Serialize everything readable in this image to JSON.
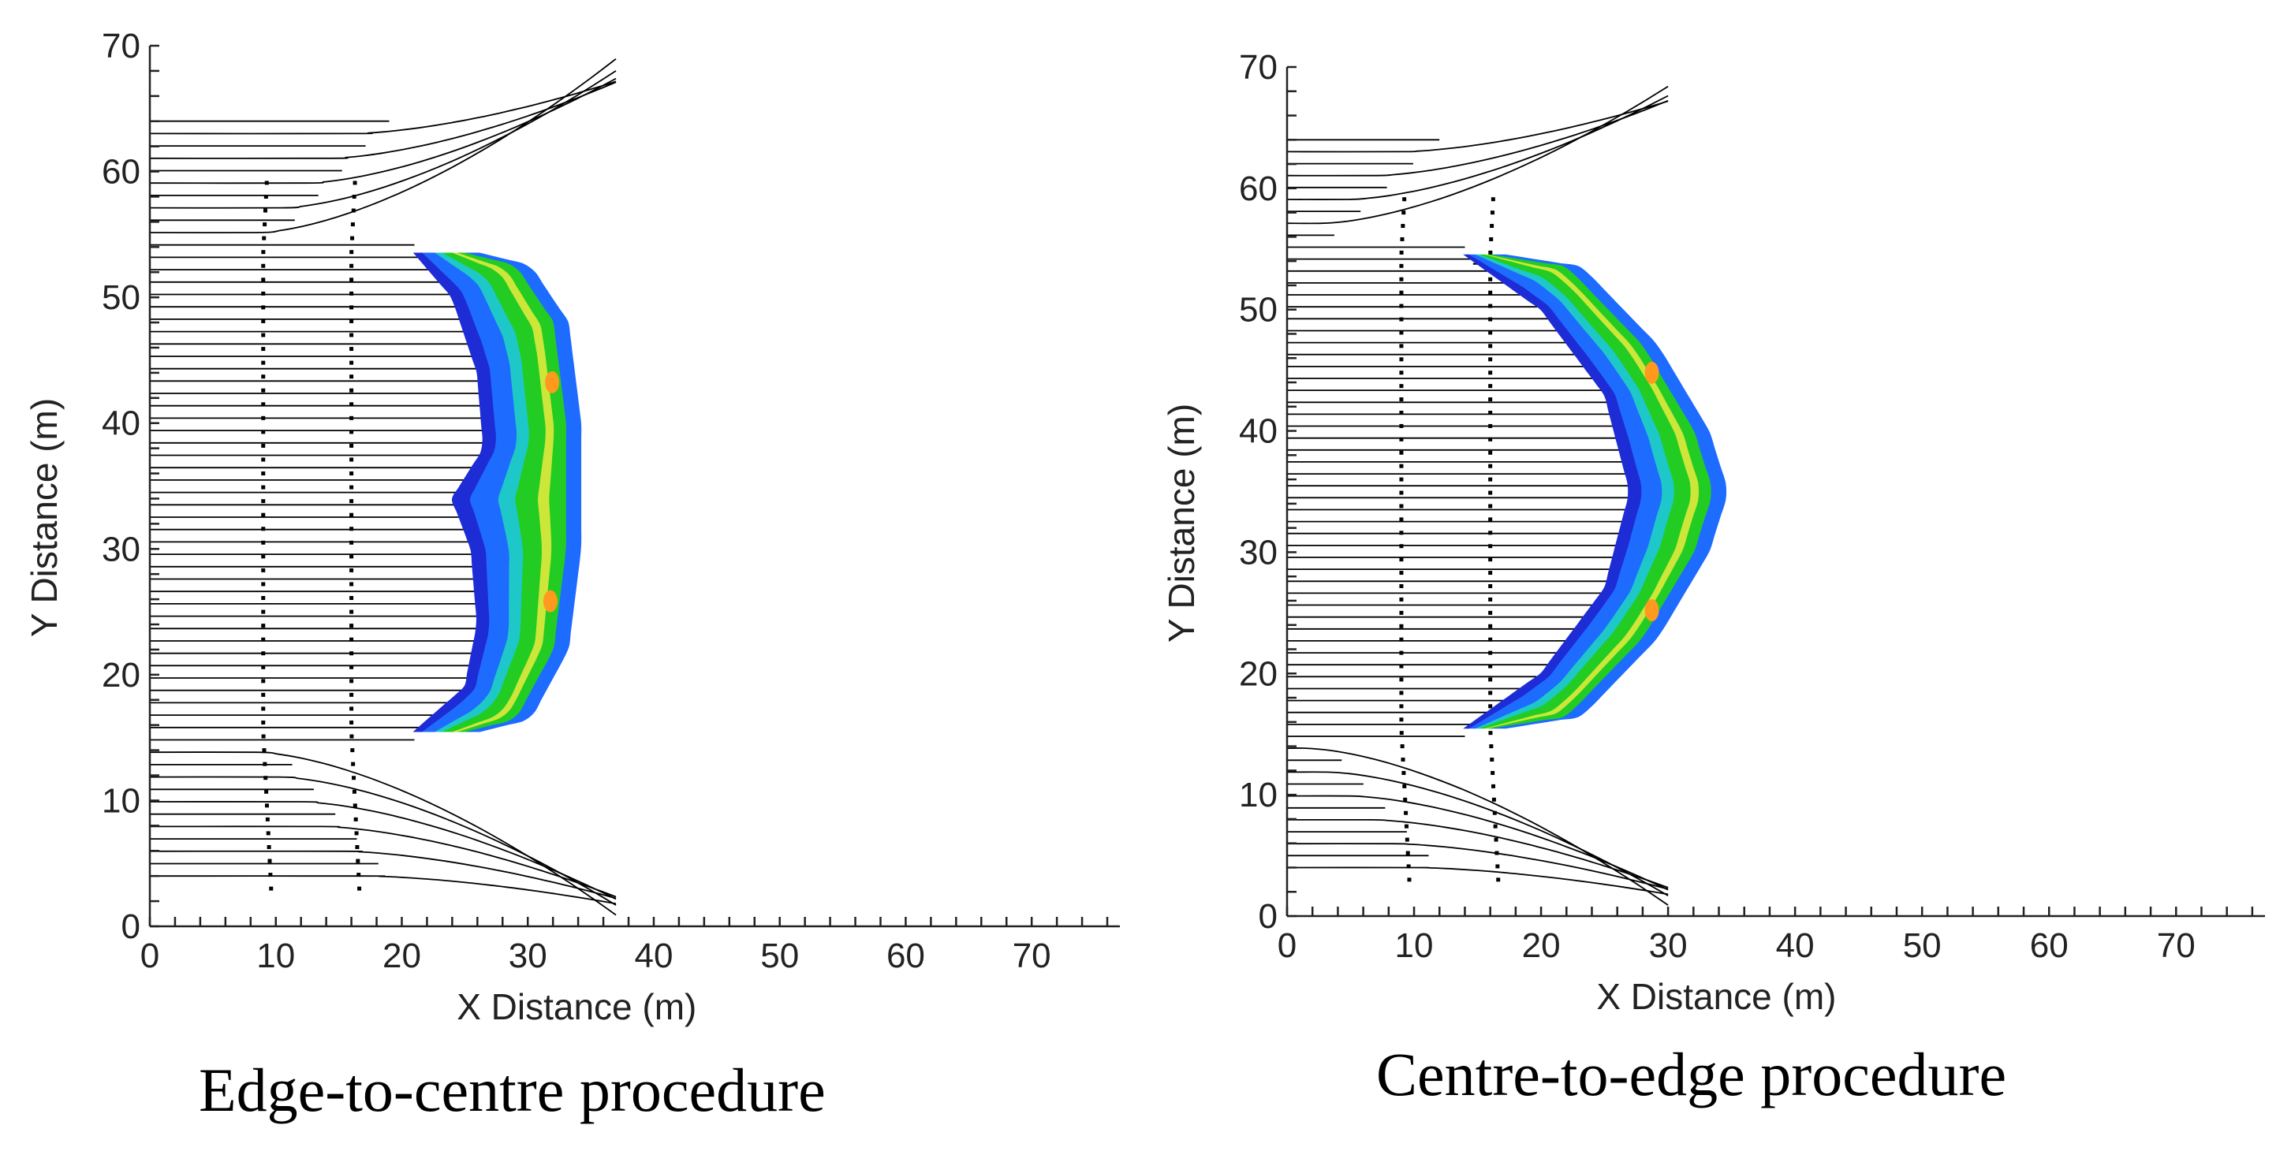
{
  "chart_data": [
    {
      "type": "contour-streamline",
      "caption": "Edge-to-centre procedure",
      "xlabel": "X Distance (m)",
      "ylabel": "Y Distance (m)",
      "xlim": [
        0,
        77
      ],
      "ylim": [
        0,
        70
      ],
      "xticks": [
        0,
        10,
        20,
        30,
        40,
        50,
        60,
        70
      ],
      "yticks": [
        0,
        10,
        20,
        30,
        40,
        50,
        60,
        70
      ],
      "inflow_y": [
        4,
        64
      ],
      "obstacle": {
        "inner_edge": [
          [
            21,
            53.5
          ],
          [
            24,
            50
          ],
          [
            26,
            44
          ],
          [
            26.5,
            38
          ],
          [
            24,
            34
          ],
          [
            25.5,
            30
          ],
          [
            26,
            24
          ],
          [
            25,
            19
          ],
          [
            21,
            15.5
          ]
        ],
        "outer_edge": [
          [
            25,
            53.5
          ],
          [
            29,
            52.5
          ],
          [
            32,
            48
          ],
          [
            33,
            40
          ],
          [
            33,
            30
          ],
          [
            32,
            22
          ],
          [
            29,
            16.5
          ],
          [
            25,
            15.5
          ]
        ]
      },
      "wake_edge_y": [
        53,
        16
      ]
    },
    {
      "type": "contour-streamline",
      "caption": "Centre-to-edge procedure",
      "xlabel": "X Distance (m)",
      "ylabel": "Y Distance (m)",
      "xlim": [
        0,
        77
      ],
      "ylim": [
        0,
        70
      ],
      "xticks": [
        0,
        10,
        20,
        30,
        40,
        50,
        60,
        70
      ],
      "yticks": [
        0,
        10,
        20,
        30,
        40,
        50,
        60,
        70
      ],
      "inflow_y": [
        4,
        64
      ],
      "obstacle": {
        "inner_edge": [
          [
            14,
            54.5
          ],
          [
            20,
            50
          ],
          [
            25,
            43
          ],
          [
            27,
            35
          ],
          [
            25,
            27
          ],
          [
            20,
            20
          ],
          [
            14,
            15.5
          ]
        ],
        "outer_edge": [
          [
            16,
            54.5
          ],
          [
            22,
            53.5
          ],
          [
            28,
            47
          ],
          [
            32,
            40
          ],
          [
            33.5,
            35
          ],
          [
            32,
            30
          ],
          [
            28,
            23
          ],
          [
            22,
            16.5
          ],
          [
            16,
            15.5
          ]
        ]
      },
      "wake_edge_y": [
        54,
        15
      ]
    }
  ],
  "colors": {
    "streamline": "#000000",
    "contour_outer": "#1e6bff",
    "contour_teal": "#1ec8c8",
    "contour_green": "#22cc22",
    "contour_yellow": "#cce63a",
    "contour_orange": "#ff9a1e",
    "contour_inner": "#1e2cd6"
  }
}
